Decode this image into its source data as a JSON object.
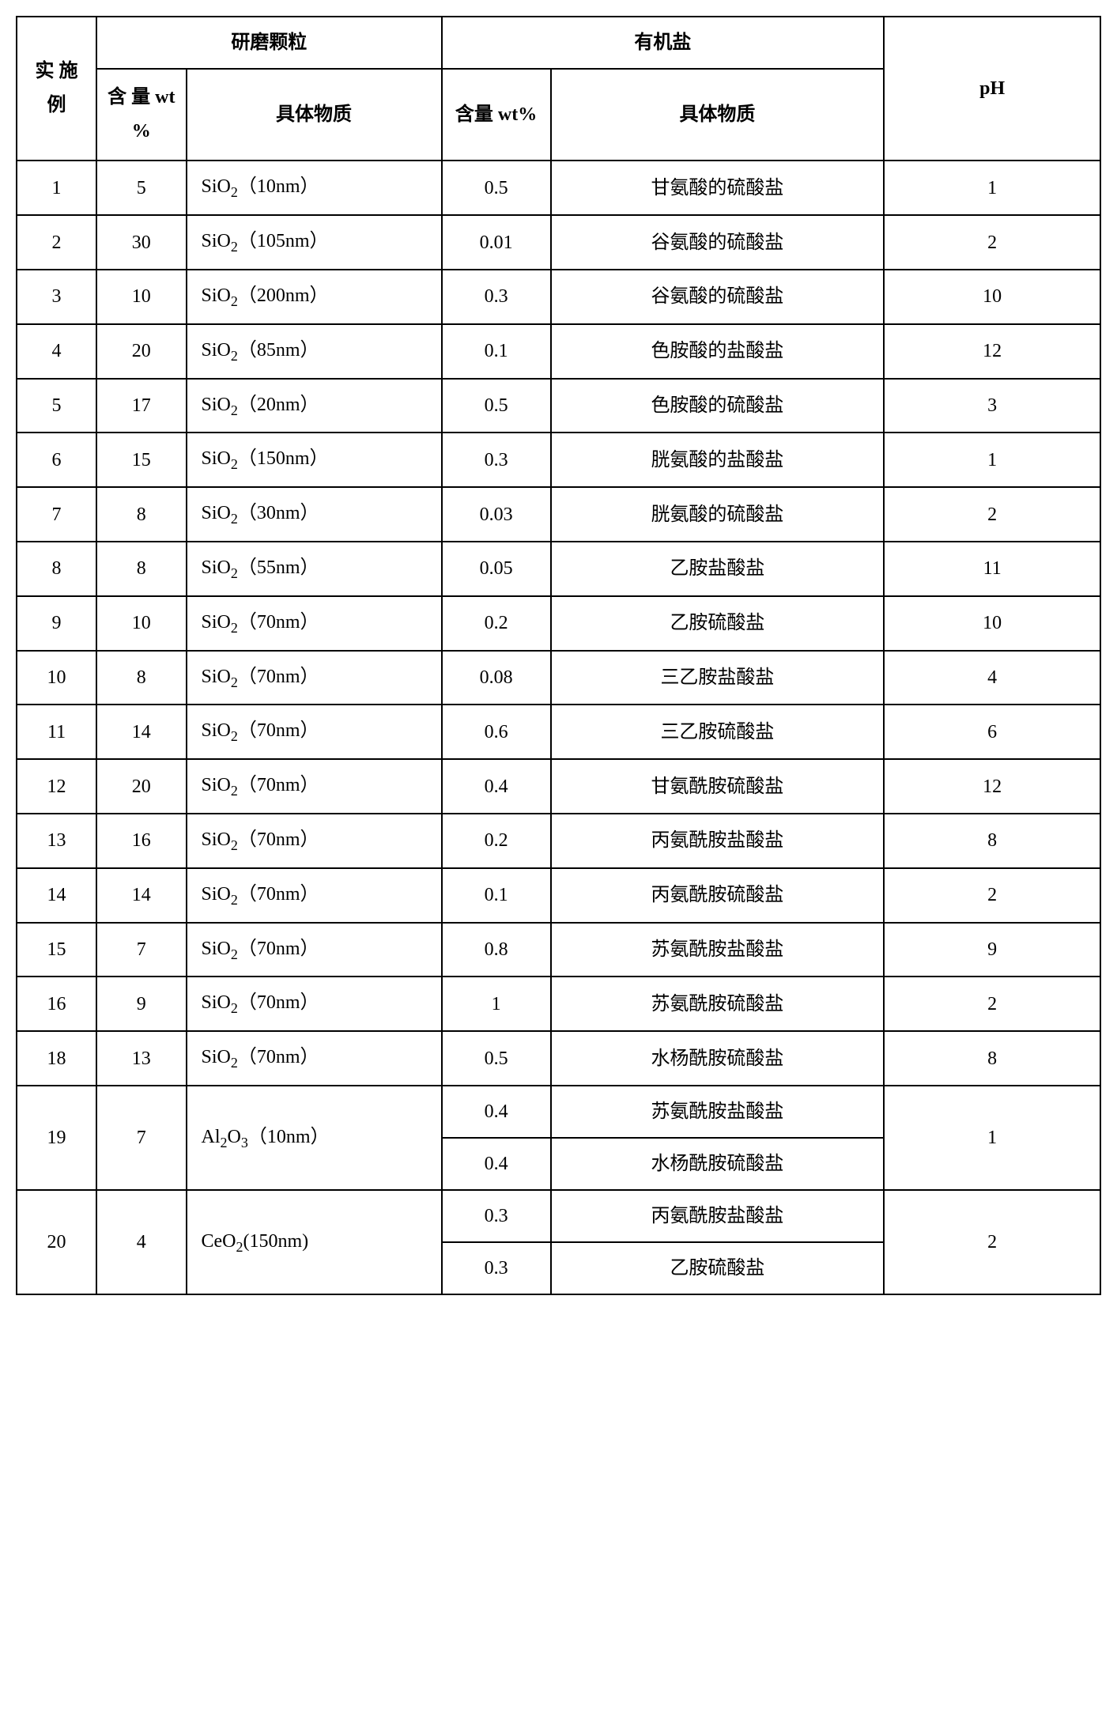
{
  "headers": {
    "example": "实\n施\n例",
    "abrasive": "研磨颗粒",
    "abrasive_content": "含\n量\nwt\n%",
    "abrasive_substance": "具体物质",
    "organic": "有机盐",
    "organic_content": "含量\nwt%",
    "organic_substance": "具体物质",
    "ph": "pH"
  },
  "rows": [
    {
      "ex": "1",
      "a_wt": "5",
      "a_sub": "SiO₂（10nm）",
      "o_wt": "0.5",
      "o_sub": "甘氨酸的硫酸盐",
      "ph": "1"
    },
    {
      "ex": "2",
      "a_wt": "30",
      "a_sub": "SiO₂（105nm）",
      "o_wt": "0.01",
      "o_sub": "谷氨酸的硫酸盐",
      "ph": "2"
    },
    {
      "ex": "3",
      "a_wt": "10",
      "a_sub": "SiO₂（200nm）",
      "o_wt": "0.3",
      "o_sub": "谷氨酸的硫酸盐",
      "ph": "10"
    },
    {
      "ex": "4",
      "a_wt": "20",
      "a_sub": "SiO₂（85nm）",
      "o_wt": "0.1",
      "o_sub": "色胺酸的盐酸盐",
      "ph": "12"
    },
    {
      "ex": "5",
      "a_wt": "17",
      "a_sub": "SiO₂（20nm）",
      "o_wt": "0.5",
      "o_sub": "色胺酸的硫酸盐",
      "ph": "3"
    },
    {
      "ex": "6",
      "a_wt": "15",
      "a_sub": "SiO₂（150nm）",
      "o_wt": "0.3",
      "o_sub": "胱氨酸的盐酸盐",
      "ph": "1"
    },
    {
      "ex": "7",
      "a_wt": "8",
      "a_sub": "SiO₂（30nm）",
      "o_wt": "0.03",
      "o_sub": "胱氨酸的硫酸盐",
      "ph": "2"
    },
    {
      "ex": "8",
      "a_wt": "8",
      "a_sub": "SiO₂（55nm）",
      "o_wt": "0.05",
      "o_sub": "乙胺盐酸盐",
      "ph": "11"
    },
    {
      "ex": "9",
      "a_wt": "10",
      "a_sub": "SiO₂（70nm）",
      "o_wt": "0.2",
      "o_sub": "乙胺硫酸盐",
      "ph": "10"
    },
    {
      "ex": "10",
      "a_wt": "8",
      "a_sub": "SiO₂（70nm）",
      "o_wt": "0.08",
      "o_sub": "三乙胺盐酸盐",
      "ph": "4"
    },
    {
      "ex": "11",
      "a_wt": "14",
      "a_sub": "SiO₂（70nm）",
      "o_wt": "0.6",
      "o_sub": "三乙胺硫酸盐",
      "ph": "6"
    },
    {
      "ex": "12",
      "a_wt": "20",
      "a_sub": "SiO₂（70nm）",
      "o_wt": "0.4",
      "o_sub": "甘氨酰胺硫酸盐",
      "ph": "12"
    },
    {
      "ex": "13",
      "a_wt": "16",
      "a_sub": "SiO₂（70nm）",
      "o_wt": "0.2",
      "o_sub": "丙氨酰胺盐酸盐",
      "ph": "8"
    },
    {
      "ex": "14",
      "a_wt": "14",
      "a_sub": "SiO₂（70nm）",
      "o_wt": "0.1",
      "o_sub": "丙氨酰胺硫酸盐",
      "ph": "2"
    },
    {
      "ex": "15",
      "a_wt": "7",
      "a_sub": "SiO₂（70nm）",
      "o_wt": "0.8",
      "o_sub": "苏氨酰胺盐酸盐",
      "ph": "9"
    },
    {
      "ex": "16",
      "a_wt": "9",
      "a_sub": "SiO₂（70nm）",
      "o_wt": "1",
      "o_sub": "苏氨酰胺硫酸盐",
      "ph": "2"
    },
    {
      "ex": "18",
      "a_wt": "13",
      "a_sub": "SiO₂（70nm）",
      "o_wt": "0.5",
      "o_sub": "水杨酰胺硫酸盐",
      "ph": "8"
    }
  ],
  "merged": [
    {
      "ex": "19",
      "a_wt": "7",
      "a_sub": "Al₂O₃（10nm）",
      "ph": "1",
      "organics": [
        {
          "wt": "0.4",
          "sub": "苏氨酰胺盐酸盐"
        },
        {
          "wt": "0.4",
          "sub": "水杨酰胺硫酸盐"
        }
      ]
    },
    {
      "ex": "20",
      "a_wt": "4",
      "a_sub": "CeO₂(150nm)",
      "ph": "2",
      "organics": [
        {
          "wt": "0.3",
          "sub": "丙氨酰胺盐酸盐"
        },
        {
          "wt": "0.3",
          "sub": "乙胺硫酸盐"
        }
      ]
    }
  ]
}
